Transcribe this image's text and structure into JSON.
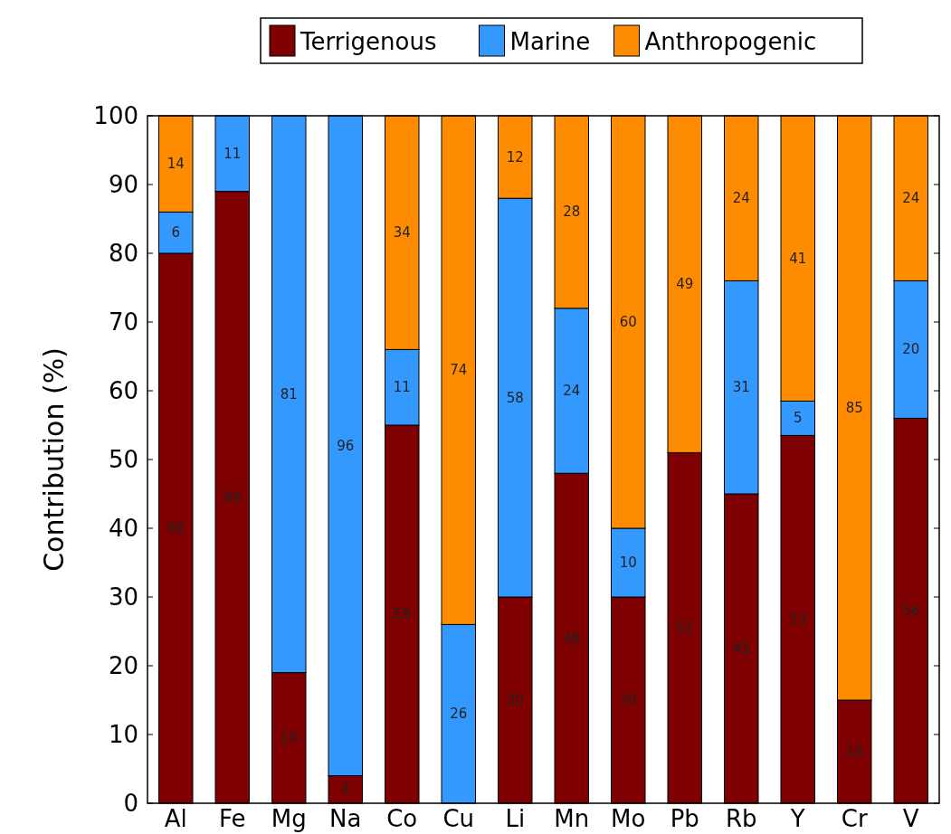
{
  "chart_data": {
    "type": "bar",
    "stacked": true,
    "ylabel": "Contribution (%)",
    "categories": [
      "Al",
      "Fe",
      "Mg",
      "Na",
      "Co",
      "Cu",
      "Li",
      "Mn",
      "Mo",
      "Pb",
      "Rb",
      "Y",
      "Cr",
      "V"
    ],
    "series": [
      {
        "name": "Terrigenous",
        "color": "#7f0000",
        "values": [
          80,
          89,
          19,
          4,
          55,
          0,
          30,
          48,
          30,
          51,
          45,
          53.5,
          15,
          56
        ],
        "value_labels": [
          "80",
          "89",
          "19",
          "4",
          "55",
          null,
          "30",
          "48",
          "30",
          "51",
          "45",
          "53",
          "15",
          "56"
        ]
      },
      {
        "name": "Marine",
        "color": "#3399ff",
        "values": [
          6,
          11,
          81,
          96,
          11,
          26,
          58,
          24,
          10,
          0,
          31,
          5,
          0,
          20
        ],
        "value_labels": [
          "6",
          "11",
          "81",
          "96",
          "11",
          "26",
          "58",
          "24",
          "10",
          null,
          "31",
          "5",
          null,
          "20"
        ]
      },
      {
        "name": "Anthropogenic",
        "color": "#ff8c00",
        "values": [
          14,
          0,
          0,
          0,
          34,
          74,
          12,
          28,
          60,
          49,
          24,
          41.5,
          85,
          24
        ],
        "value_labels": [
          "14",
          null,
          null,
          null,
          "34",
          "74",
          "12",
          "28",
          "60",
          "49",
          "24",
          "41",
          "85",
          "24"
        ]
      }
    ],
    "ylim": [
      0,
      100
    ],
    "yticks": [
      0,
      10,
      20,
      30,
      40,
      50,
      60,
      70,
      80,
      90,
      100
    ],
    "legend": "top",
    "grid": false
  }
}
